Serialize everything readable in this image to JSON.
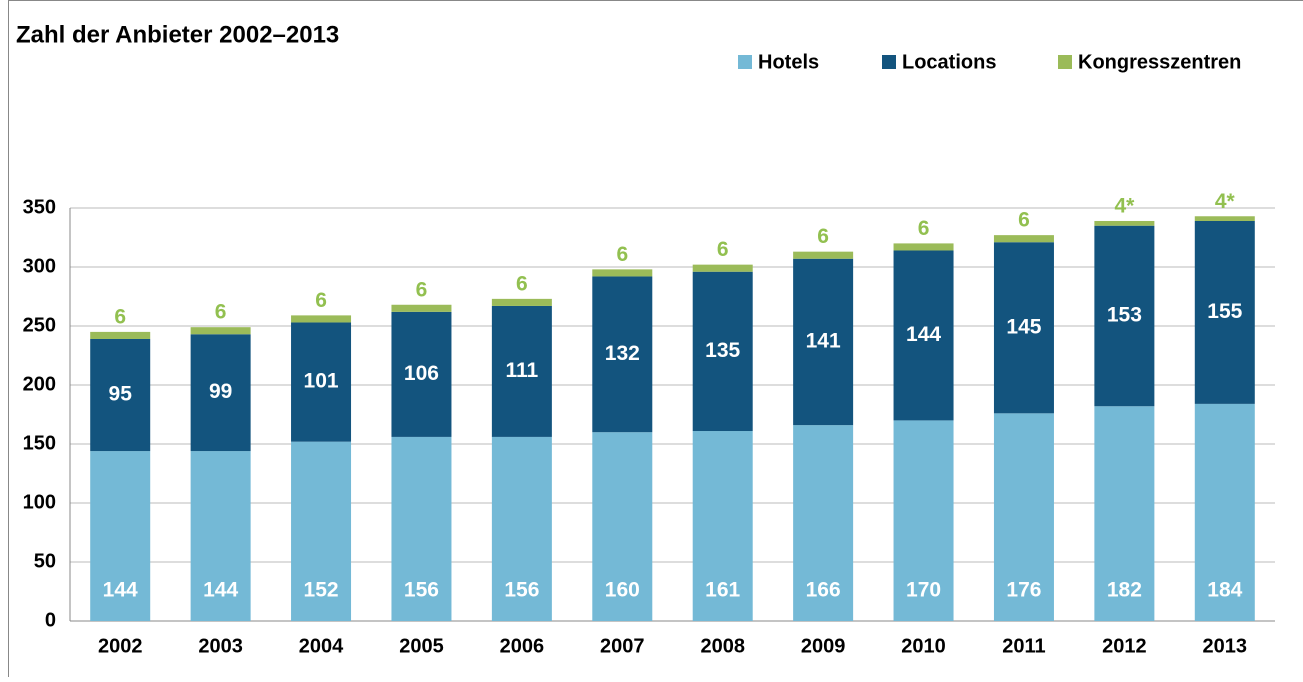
{
  "chart_data": {
    "type": "bar",
    "stacked": true,
    "title": "Zahl der Anbieter 2002–2013",
    "categories": [
      "2002",
      "2003",
      "2004",
      "2005",
      "2006",
      "2007",
      "2008",
      "2009",
      "2010",
      "2011",
      "2012",
      "2013"
    ],
    "series": [
      {
        "name": "Hotels",
        "color": "#74b9d6",
        "values": [
          144,
          144,
          152,
          156,
          156,
          160,
          161,
          166,
          170,
          176,
          182,
          184
        ]
      },
      {
        "name": "Locations",
        "color": "#13547e",
        "values": [
          95,
          99,
          101,
          106,
          111,
          132,
          135,
          141,
          144,
          145,
          153,
          155
        ]
      },
      {
        "name": "Kongresszentren",
        "color": "#9bbb59",
        "values": [
          6,
          6,
          6,
          6,
          6,
          6,
          6,
          6,
          6,
          6,
          4,
          4
        ],
        "value_labels": [
          "6",
          "6",
          "6",
          "6",
          "6",
          "6",
          "6",
          "6",
          "6",
          "6",
          "4*",
          "4*"
        ]
      }
    ],
    "ylim": [
      0,
      350
    ],
    "yticks": [
      0,
      50,
      100,
      150,
      200,
      250,
      300,
      350
    ],
    "grid": true,
    "legend": "top-right"
  }
}
